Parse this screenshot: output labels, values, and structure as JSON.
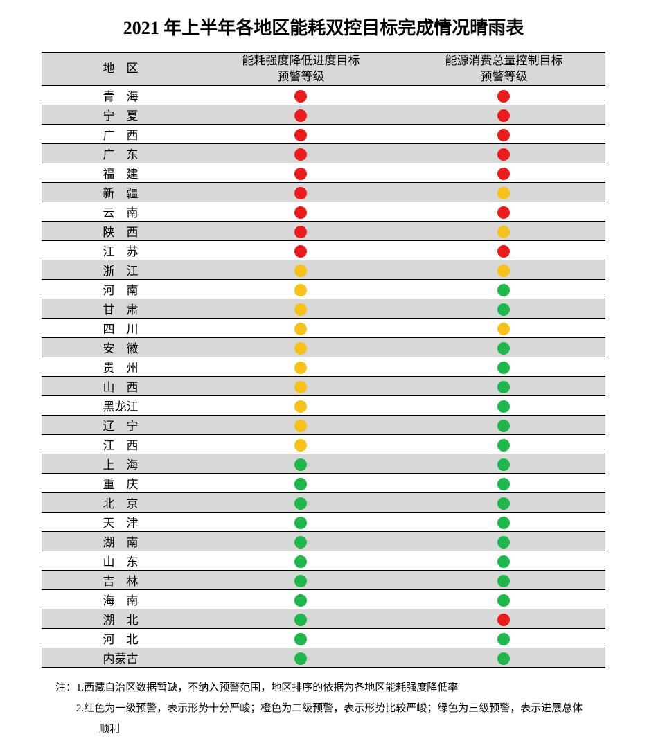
{
  "title": "2021 年上半年各地区能耗双控目标完成情况晴雨表",
  "columns": {
    "region": "地　区",
    "intensity": "能耗强度降低进度目标\n预警等级",
    "total": "能源消费总量控制目标\n预警等级"
  },
  "colors": {
    "red": "#e81c1c",
    "orange": "#f5c11a",
    "green": "#1fb64b",
    "header_bg": "#d8d8d8",
    "row_alt_bg": "#d8d8d8",
    "row_bg": "#ffffff",
    "border": "#000000"
  },
  "rows": [
    {
      "region": "青　海",
      "c1": "red",
      "c2": "red"
    },
    {
      "region": "宁　夏",
      "c1": "red",
      "c2": "red"
    },
    {
      "region": "广　西",
      "c1": "red",
      "c2": "red"
    },
    {
      "region": "广　东",
      "c1": "red",
      "c2": "red"
    },
    {
      "region": "福　建",
      "c1": "red",
      "c2": "red"
    },
    {
      "region": "新　疆",
      "c1": "red",
      "c2": "orange"
    },
    {
      "region": "云　南",
      "c1": "red",
      "c2": "red"
    },
    {
      "region": "陕　西",
      "c1": "red",
      "c2": "orange"
    },
    {
      "region": "江　苏",
      "c1": "red",
      "c2": "red"
    },
    {
      "region": "浙　江",
      "c1": "orange",
      "c2": "orange"
    },
    {
      "region": "河　南",
      "c1": "orange",
      "c2": "green"
    },
    {
      "region": "甘　肃",
      "c1": "orange",
      "c2": "green"
    },
    {
      "region": "四　川",
      "c1": "orange",
      "c2": "orange"
    },
    {
      "region": "安　徽",
      "c1": "orange",
      "c2": "green"
    },
    {
      "region": "贵　州",
      "c1": "orange",
      "c2": "green"
    },
    {
      "region": "山　西",
      "c1": "orange",
      "c2": "green"
    },
    {
      "region": "黑龙江",
      "c1": "orange",
      "c2": "green"
    },
    {
      "region": "辽　宁",
      "c1": "orange",
      "c2": "green"
    },
    {
      "region": "江　西",
      "c1": "orange",
      "c2": "green"
    },
    {
      "region": "上　海",
      "c1": "green",
      "c2": "green"
    },
    {
      "region": "重　庆",
      "c1": "green",
      "c2": "green"
    },
    {
      "region": "北　京",
      "c1": "green",
      "c2": "green"
    },
    {
      "region": "天　津",
      "c1": "green",
      "c2": "green"
    },
    {
      "region": "湖　南",
      "c1": "green",
      "c2": "green"
    },
    {
      "region": "山　东",
      "c1": "green",
      "c2": "green"
    },
    {
      "region": "吉　林",
      "c1": "green",
      "c2": "green"
    },
    {
      "region": "海　南",
      "c1": "green",
      "c2": "green"
    },
    {
      "region": "湖　北",
      "c1": "green",
      "c2": "red"
    },
    {
      "region": "河　北",
      "c1": "green",
      "c2": "green"
    },
    {
      "region": "内蒙古",
      "c1": "green",
      "c2": "green"
    }
  ],
  "notes": {
    "prefix": "注：",
    "line1": "1.西藏自治区数据暂缺，不纳入预警范围，地区排序的依据为各地区能耗强度降低率",
    "line2": "2.红色为一级预警，表示形势十分严峻；橙色为二级预警，表示形势比较严峻；绿色为三级预警，表示进展总体顺利"
  }
}
